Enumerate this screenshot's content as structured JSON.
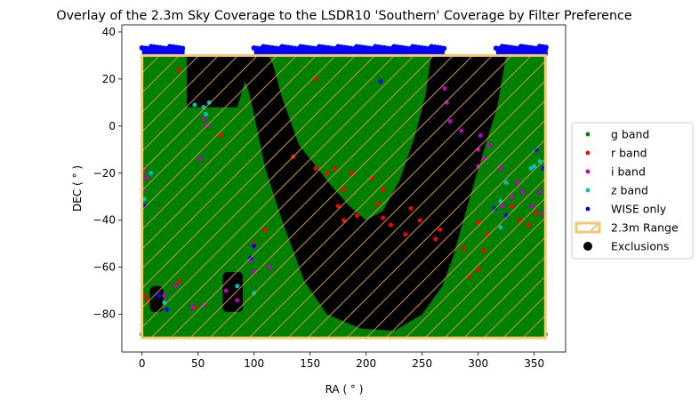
{
  "chart_data": {
    "type": "scatter",
    "title": "Overlay of the 2.3m Sky Coverage to the LSDR10 'Southern' Coverage by Filter Preference",
    "xlabel": "RA ( ° )",
    "ylabel": "DEC ( ° )",
    "xlim": [
      -18,
      378
    ],
    "ylim": [
      -96,
      43
    ],
    "xticks": [
      0,
      50,
      100,
      150,
      200,
      250,
      300,
      350
    ],
    "yticks": [
      40,
      20,
      0,
      -20,
      -40,
      -60,
      -80
    ],
    "grid": false,
    "legend_position": "right",
    "colors": {
      "g": "#008000",
      "r": "#ff0000",
      "i": "#bf00bf",
      "z": "#00bfbf",
      "wise": "#0000ff",
      "range_edge": "#f5c86c",
      "range_hatch": "#c89646",
      "exclusion": "#000000"
    },
    "legend": [
      {
        "key": "g",
        "label": "g band",
        "kind": "dot"
      },
      {
        "key": "r",
        "label": "r band",
        "kind": "dot"
      },
      {
        "key": "i",
        "label": "i band",
        "kind": "dot"
      },
      {
        "key": "z",
        "label": "z band",
        "kind": "dot"
      },
      {
        "key": "wise",
        "label": "WISE only",
        "kind": "dot"
      },
      {
        "key": "range_edge",
        "label": "2.3m Range",
        "kind": "rect"
      },
      {
        "key": "exclusion",
        "label": "Exclusions",
        "kind": "bigdot"
      }
    ],
    "coverage_ra": [
      0,
      360
    ],
    "coverage_dec": [
      -90,
      30
    ],
    "range_2_3m": {
      "ra": [
        0,
        360
      ],
      "dec": [
        -90,
        30
      ]
    },
    "exclusions": [
      {
        "shape": "poly",
        "points": [
          [
            40,
            30
          ],
          [
            113,
            30
          ],
          [
            117,
            26
          ],
          [
            125,
            12
          ],
          [
            140,
            -8
          ],
          [
            155,
            -17
          ],
          [
            170,
            -26
          ],
          [
            185,
            -34
          ],
          [
            200,
            -40
          ],
          [
            215,
            -36
          ],
          [
            230,
            -23
          ],
          [
            243,
            -5
          ],
          [
            253,
            13
          ],
          [
            258,
            30
          ],
          [
            325,
            30
          ],
          [
            317,
            8
          ],
          [
            302,
            -15
          ],
          [
            288,
            -38
          ],
          [
            278,
            -55
          ],
          [
            268,
            -68
          ],
          [
            250,
            -80
          ],
          [
            225,
            -87
          ],
          [
            195,
            -86
          ],
          [
            165,
            -80
          ],
          [
            145,
            -66
          ],
          [
            125,
            -40
          ],
          [
            110,
            -18
          ],
          [
            100,
            5
          ],
          [
            95,
            15
          ],
          [
            92,
            19
          ],
          [
            85,
            8
          ],
          [
            40,
            8
          ]
        ]
      },
      {
        "shape": "rect",
        "ra": [
          7,
          19
        ],
        "dec": [
          -79,
          -68
        ]
      },
      {
        "shape": "rect",
        "ra": [
          72,
          90
        ],
        "dec": [
          -79,
          -62
        ]
      }
    ],
    "series": [
      {
        "name": "g band",
        "key": "g",
        "points": []
      },
      {
        "name": "r band",
        "key": "r",
        "points": [
          [
            33,
            24
          ],
          [
            155,
            20
          ],
          [
            155,
            -18
          ],
          [
            135,
            -13
          ],
          [
            165,
            -20
          ],
          [
            172,
            -18
          ],
          [
            180,
            -27
          ],
          [
            187,
            -20
          ],
          [
            205,
            -22
          ],
          [
            215,
            -27
          ],
          [
            175,
            -34
          ],
          [
            180,
            -40
          ],
          [
            192,
            -38
          ],
          [
            210,
            -33
          ],
          [
            215,
            -39
          ],
          [
            222,
            -42
          ],
          [
            240,
            -35
          ],
          [
            248,
            -40
          ],
          [
            235,
            -46
          ],
          [
            262,
            -48
          ],
          [
            266,
            -44
          ],
          [
            330,
            -34
          ],
          [
            337,
            -40
          ],
          [
            345,
            -42
          ],
          [
            352,
            -37
          ],
          [
            300,
            -41
          ],
          [
            308,
            -46
          ],
          [
            305,
            -53
          ],
          [
            300,
            -61
          ],
          [
            292,
            -64
          ],
          [
            287,
            -52
          ],
          [
            70,
            -4
          ],
          [
            100,
            -50
          ],
          [
            110,
            -44
          ],
          [
            33,
            -66
          ],
          [
            2,
            -72
          ],
          [
            5,
            -74
          ],
          [
            47,
            -77
          ]
        ]
      },
      {
        "name": "i band",
        "key": "i",
        "points": [
          [
            270,
            16
          ],
          [
            272,
            10
          ],
          [
            275,
            2
          ],
          [
            285,
            -2
          ],
          [
            300,
            -10
          ],
          [
            305,
            -14
          ],
          [
            320,
            -18
          ],
          [
            335,
            -24
          ],
          [
            340,
            -28
          ],
          [
            348,
            -34
          ],
          [
            355,
            -28
          ],
          [
            358,
            -37
          ],
          [
            330,
            -30
          ],
          [
            55,
            3
          ],
          [
            58,
            0
          ],
          [
            52,
            -14
          ],
          [
            302,
            -4
          ],
          [
            310,
            -8
          ],
          [
            300,
            -17
          ],
          [
            322,
            -34
          ],
          [
            2,
            -19
          ],
          [
            4,
            -22
          ],
          [
            1,
            -27
          ],
          [
            97,
            -57
          ],
          [
            100,
            -62
          ],
          [
            114,
            -60
          ],
          [
            20,
            -72
          ],
          [
            30,
            -68
          ],
          [
            45,
            -77
          ],
          [
            55,
            -76
          ],
          [
            75,
            -70
          ],
          [
            85,
            -74
          ]
        ]
      },
      {
        "name": "z band",
        "key": "z",
        "points": [
          [
            55,
            8
          ],
          [
            57,
            5
          ],
          [
            60,
            10
          ],
          [
            47,
            9
          ],
          [
            350,
            -17
          ],
          [
            355,
            -15
          ],
          [
            347,
            -18
          ],
          [
            320,
            -32
          ],
          [
            8,
            -20
          ],
          [
            2,
            -31
          ],
          [
            325,
            -24
          ],
          [
            320,
            -43
          ],
          [
            85,
            -68
          ],
          [
            100,
            -71
          ],
          [
            20,
            -75
          ]
        ]
      },
      {
        "name": "WISE only",
        "key": "wise",
        "points": [
          [
            213,
            19
          ],
          [
            315,
            -35
          ],
          [
            325,
            -38
          ],
          [
            2,
            -34
          ],
          [
            352,
            -10
          ],
          [
            358,
            -18
          ],
          [
            100,
            -51
          ],
          [
            97,
            -56
          ],
          [
            15,
            -72
          ],
          [
            22,
            -78
          ]
        ]
      }
    ],
    "annotations": []
  }
}
